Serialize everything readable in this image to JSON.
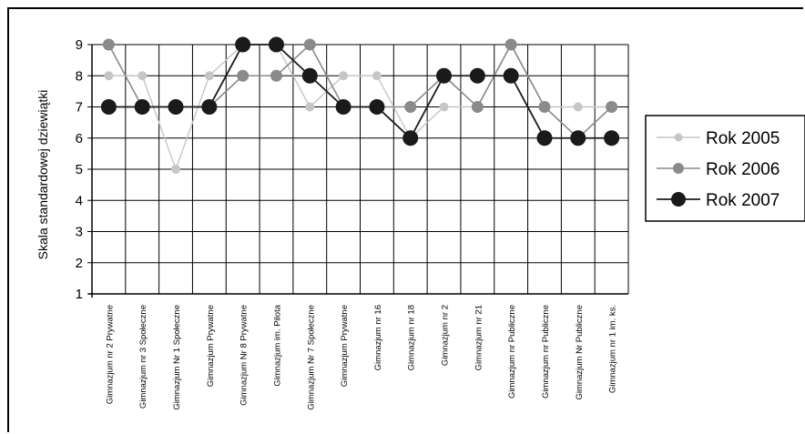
{
  "chart_data": {
    "type": "line",
    "ylabel": "Skala standardowej dziewiątki",
    "xlabel": "",
    "ylim": [
      1,
      9
    ],
    "yticks": [
      "1",
      "2",
      "3",
      "4",
      "5",
      "6",
      "7",
      "8",
      "9"
    ],
    "grid": true,
    "legend_position": "right",
    "categories": [
      "Gimnazjum nr 2 Prywatne",
      "Gimnazjum nr 3 Społeczne",
      "Gimnazjum Nr 1 Społeczne",
      "Gimnazjum Prywatne",
      "Gimnazjum Nr 8 Prywatne",
      "Gimnazjum im. Pilota",
      "Gimnazjum Nr 7 Społeczne",
      "Gimnazjum Prywatne",
      "Gimnazjum nr 16",
      "Gimnazjum nr 18",
      "Gimnazjum nr 2",
      "Gimnazjum nr 21",
      "Gimnazjum nr Publiczne",
      "Gimnazjum nr Publiczne",
      "Gimnazjum Nr Publiczne",
      "Gimnazjum nr 1 im. ks."
    ],
    "series": [
      {
        "name": "Rok 2005",
        "values": [
          8,
          8,
          5,
          8,
          9,
          9,
          7,
          8,
          8,
          6,
          7,
          7,
          9,
          7,
          7,
          7
        ]
      },
      {
        "name": "Rok 2006",
        "values": [
          9,
          7,
          7,
          7,
          8,
          8,
          9,
          7,
          7,
          7,
          8,
          7,
          9,
          7,
          6,
          7
        ]
      },
      {
        "name": "Rok 2007",
        "values": [
          7,
          7,
          7,
          7,
          9,
          9,
          8,
          7,
          7,
          6,
          8,
          8,
          8,
          6,
          6,
          6
        ]
      }
    ],
    "colors": [
      "#c6c6c6",
      "#8a8a8a",
      "#1a1a1a"
    ]
  }
}
